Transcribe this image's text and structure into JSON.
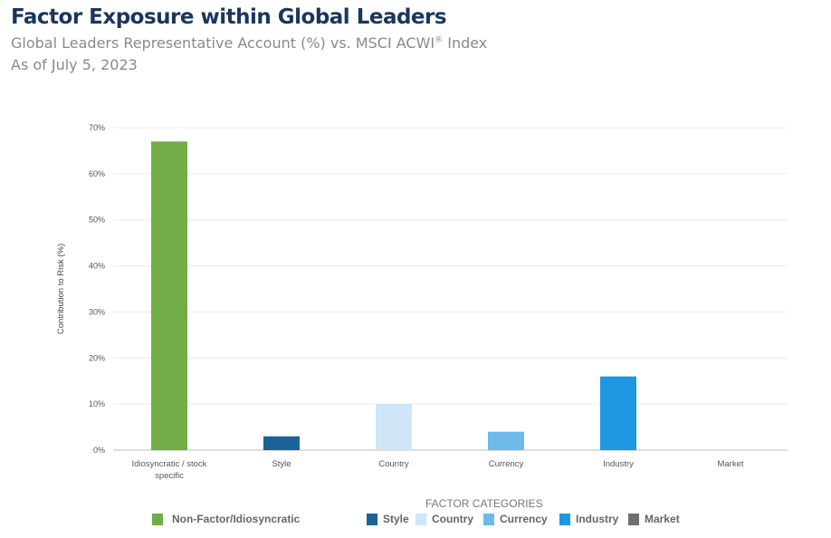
{
  "header": {
    "title": "Factor Exposure within Global Leaders",
    "subtitle": "Global Leaders Representative Account (%) vs. MSCI ACWI",
    "subtitle_mark": "®",
    "subtitle_end": " Index",
    "date": "As of July 5, 2023"
  },
  "chart_data": {
    "type": "bar",
    "title": "Factor Exposure within Global Leaders",
    "xlabel": "",
    "ylabel": "Contribution to Risk (%)",
    "ylim": [
      0,
      70
    ],
    "yticks": [
      "0%",
      "10%",
      "20%",
      "30%",
      "40%",
      "50%",
      "60%",
      "70%"
    ],
    "grid": true,
    "categories": [
      {
        "line1": "Idiosyncratic / stock",
        "line2": "specific"
      },
      {
        "line1": "Style",
        "line2": ""
      },
      {
        "line1": "Country",
        "line2": ""
      },
      {
        "line1": "Currency",
        "line2": ""
      },
      {
        "line1": "Industry",
        "line2": ""
      },
      {
        "line1": "Market",
        "line2": ""
      }
    ],
    "values": [
      67,
      3,
      10,
      4,
      16,
      0
    ],
    "colors": [
      "#70ad47",
      "#1b6396",
      "#cfe6f8",
      "#6cb9ea",
      "#1f96e2",
      "#6d6e71"
    ],
    "legend_title": "FACTOR CATEGORIES",
    "legend": [
      {
        "label": "Non-Factor/Idiosyncratic",
        "color": "#70ad47"
      },
      {
        "label": "Style",
        "color": "#1b6396"
      },
      {
        "label": "Country",
        "color": "#cfe6f8"
      },
      {
        "label": "Currency",
        "color": "#6cb9ea"
      },
      {
        "label": "Industry",
        "color": "#1f96e2"
      },
      {
        "label": "Market",
        "color": "#6d6e71"
      }
    ],
    "legend_placement": "bottom"
  }
}
